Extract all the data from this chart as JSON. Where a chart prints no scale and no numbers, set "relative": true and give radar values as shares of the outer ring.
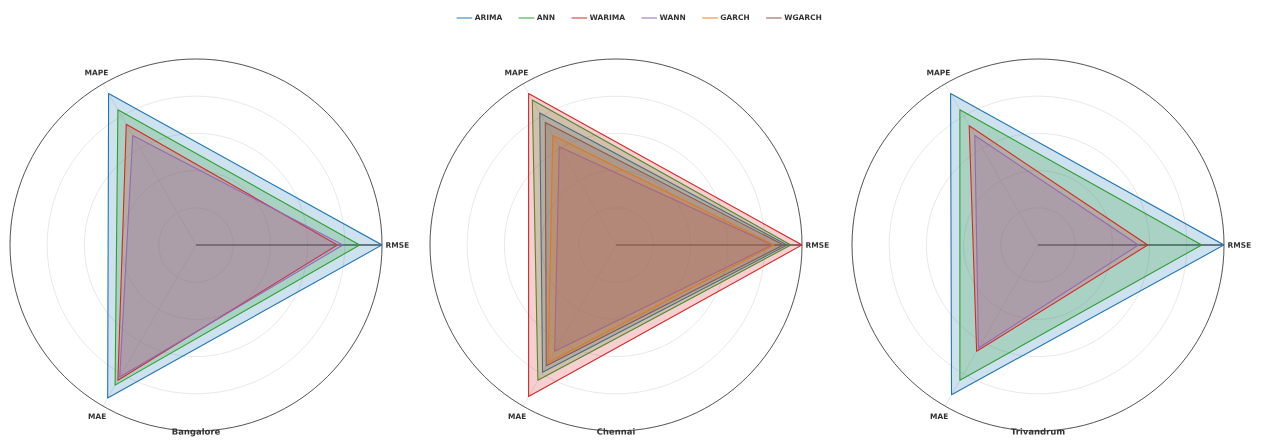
{
  "chart_data": [
    {
      "type": "radar",
      "relative": true,
      "grid": true,
      "legend": "top",
      "title": "Bangalore",
      "categories": [
        "RMSE",
        "MAE",
        "MAPE"
      ],
      "series": [
        {
          "name": "ARIMA",
          "color": "#1f77b4",
          "values": [
            1.0,
            0.95,
            0.94
          ]
        },
        {
          "name": "ANN",
          "color": "#2ca02c",
          "values": [
            0.88,
            0.87,
            0.84
          ]
        },
        {
          "name": "WARIMA",
          "color": "#d62728",
          "values": [
            0.76,
            0.84,
            0.75
          ]
        },
        {
          "name": "WANN",
          "color": "#9467bd",
          "values": [
            0.79,
            0.82,
            0.68
          ]
        },
        {
          "name": "GARCH",
          "color": "#ff7f0e",
          "values": [
            null,
            null,
            null
          ]
        },
        {
          "name": "WGARCH",
          "color": "#8c564b",
          "values": [
            null,
            null,
            null
          ]
        }
      ]
    },
    {
      "type": "radar",
      "relative": true,
      "grid": true,
      "title": "Chennai",
      "categories": [
        "RMSE",
        "MAE",
        "MAPE"
      ],
      "series": [
        {
          "color": "#1f77b4",
          "values": [
            0.92,
            0.79,
            0.82
          ]
        },
        {
          "color": "#2ca02c",
          "values": [
            0.94,
            0.84,
            0.9
          ]
        },
        {
          "color": "#d62728",
          "values": [
            1.0,
            0.94,
            0.94
          ]
        },
        {
          "color": "#9467bd",
          "values": [
            0.84,
            0.66,
            0.61
          ]
        },
        {
          "color": "#ff7f0e",
          "values": [
            0.85,
            0.73,
            0.68
          ]
        },
        {
          "color": "#8c564b",
          "values": [
            0.9,
            0.75,
            0.76
          ]
        }
      ]
    },
    {
      "type": "radar",
      "relative": true,
      "grid": true,
      "title": "Trivandrum",
      "categories": [
        "RMSE",
        "MAE",
        "MAPE"
      ],
      "series": [
        {
          "color": "#1f77b4",
          "values": [
            1.0,
            0.93,
            0.94
          ]
        },
        {
          "color": "#2ca02c",
          "values": [
            0.88,
            0.84,
            0.84
          ]
        },
        {
          "color": "#d62728",
          "values": [
            0.59,
            0.66,
            0.74
          ]
        },
        {
          "color": "#9467bd",
          "values": [
            0.54,
            0.64,
            0.68
          ]
        },
        {
          "color": "#ff7f0e",
          "values": [
            null,
            null,
            null
          ]
        },
        {
          "color": "#8c564b",
          "values": [
            null,
            null,
            null
          ]
        }
      ]
    }
  ]
}
